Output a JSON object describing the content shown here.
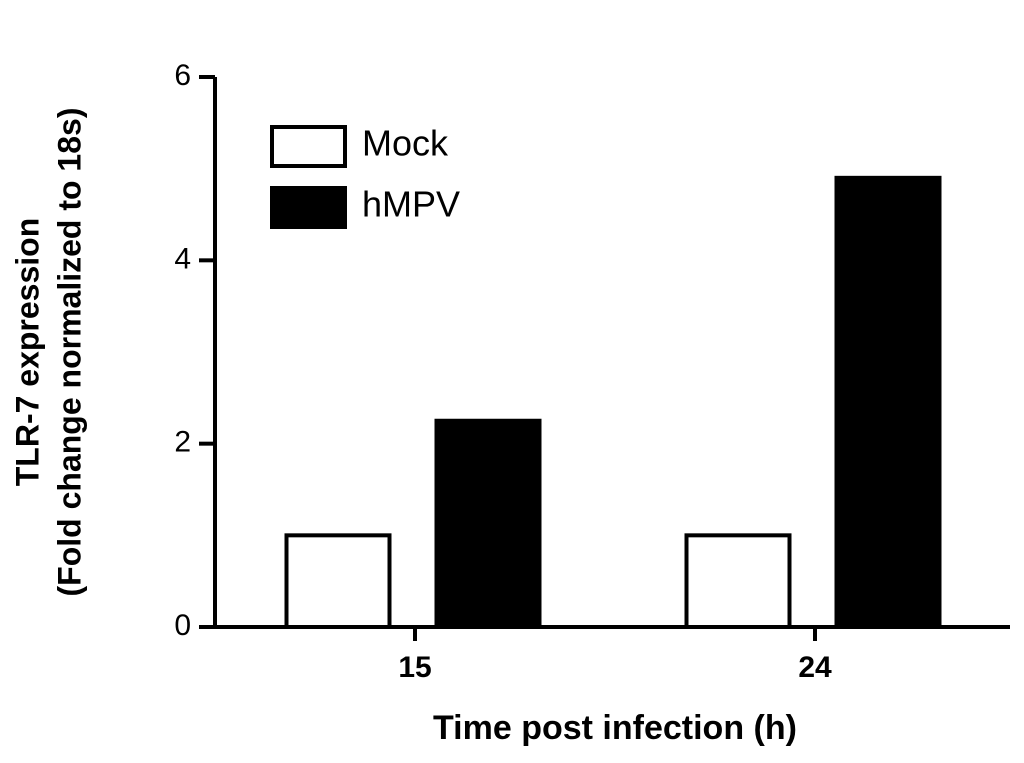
{
  "chart_data": {
    "type": "bar",
    "ylabel": [
      "TLR-7 expression",
      "(Fold change normalized to 18s)"
    ],
    "xlabel": "Time post infection (h)",
    "categories": [
      "15",
      "24"
    ],
    "series": [
      {
        "name": "Mock",
        "color": "#ffffff",
        "values": [
          1,
          1
        ]
      },
      {
        "name": "hMPV",
        "color": "#000000",
        "values": [
          2.25,
          4.9
        ]
      }
    ],
    "ylim": [
      0,
      6
    ],
    "yticks": [
      0,
      2,
      4,
      6
    ],
    "grid": false,
    "legend": "upper-left"
  }
}
